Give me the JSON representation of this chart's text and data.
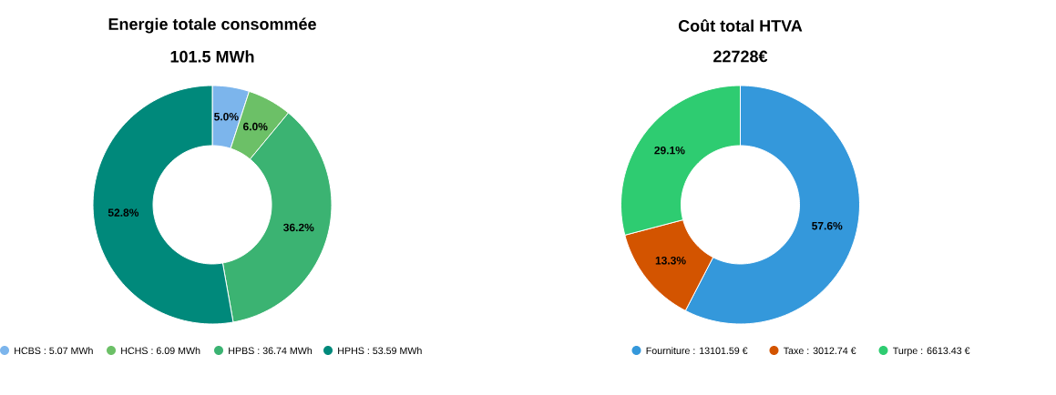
{
  "chart_data": [
    {
      "type": "donut",
      "title": "Energie totale consommée",
      "subtitle": "101.5 MWh",
      "categories": [
        "HCBS : 5.07 MWh",
        "HCHS : 6.09 MWh",
        "HPBS : 36.74 MWh",
        "HPHS : 53.59 MWh"
      ],
      "values": [
        5.0,
        6.0,
        36.2,
        52.8
      ],
      "colors": [
        "#7cb5ec",
        "#6cc067",
        "#3bb372",
        "#00897b"
      ],
      "value_labels": [
        "5.0%",
        "6.0%",
        "36.2%",
        "52.8%"
      ],
      "legend": "bottom"
    },
    {
      "type": "donut",
      "title": "Coût total HTVA",
      "subtitle": "22728€",
      "categories": [
        "Fourniture : 13101.59 €",
        "Taxe : 3012.74 €",
        "Turpe : 6613.43 €"
      ],
      "values": [
        57.6,
        13.3,
        29.1
      ],
      "colors": [
        "#3498db",
        "#d35400",
        "#2ecc71"
      ],
      "value_labels": [
        "57.6%",
        "13.3%",
        "29.1%"
      ],
      "legend": "bottom"
    }
  ]
}
